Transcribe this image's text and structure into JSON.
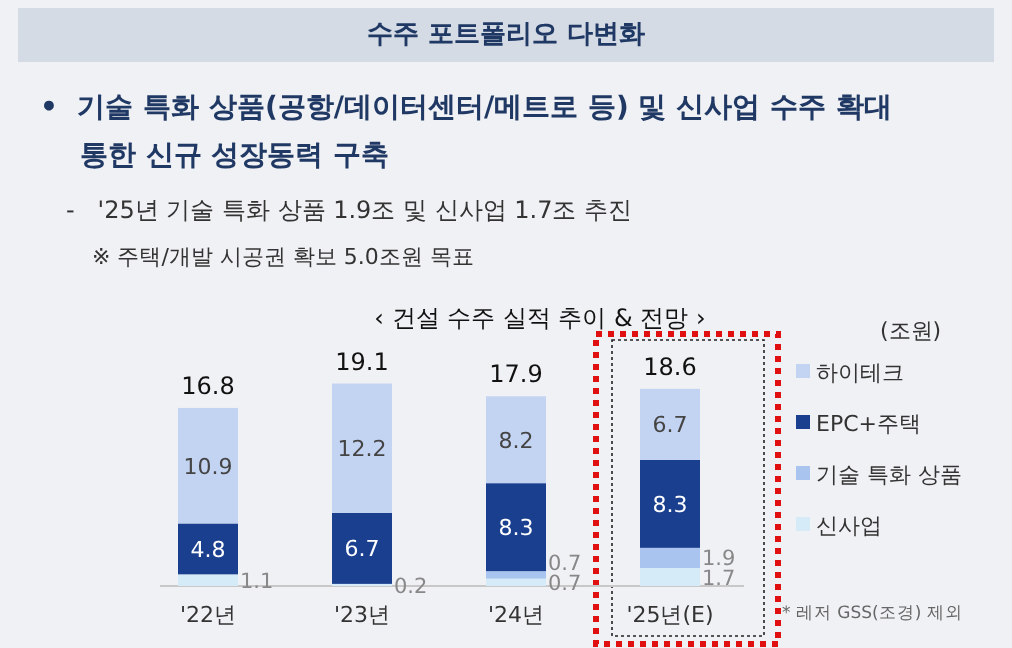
{
  "chart_data": {
    "type": "bar",
    "stacked": true,
    "title": "수주 포트폴리오 다변화",
    "subtitle": "‹ 건설 수주 실적 추이 & 전망 ›",
    "annotations": [
      "•  기술 특화 상품(공항/데이터센터/메트로 등) 및 신사업 수주 확대 통한 신규 성장동력 구축",
      "-   '25년 기술 특화 상품 1.9조 및 신사업 1.7조 추진",
      "※ 주택/개발 시공권 확보 5.0조원 목표",
      "* 레저 GSS(조경) 제외",
      "(조원)"
    ],
    "categories": [
      "'22년",
      "'23년",
      "'24년",
      "'25년(E)"
    ],
    "series": [
      {
        "name": "신사업",
        "color": "#d6ebf8",
        "values": [
          1.1,
          0.2,
          0.7,
          1.7
        ]
      },
      {
        "name": "기술 특화 상품",
        "color": "#a9c4ef",
        "values": [
          null,
          null,
          0.7,
          1.9
        ]
      },
      {
        "name": "EPC+주택",
        "color": "#1a3f8f",
        "values": [
          4.8,
          6.7,
          8.3,
          8.3
        ]
      },
      {
        "name": "하이테크",
        "color": "#c3d3f2",
        "values": [
          10.9,
          12.2,
          8.2,
          6.7
        ]
      }
    ],
    "data_labels": true,
    "totals": [
      "16.8",
      "19.1",
      "17.9",
      "18.6"
    ],
    "legend": "right"
  }
}
